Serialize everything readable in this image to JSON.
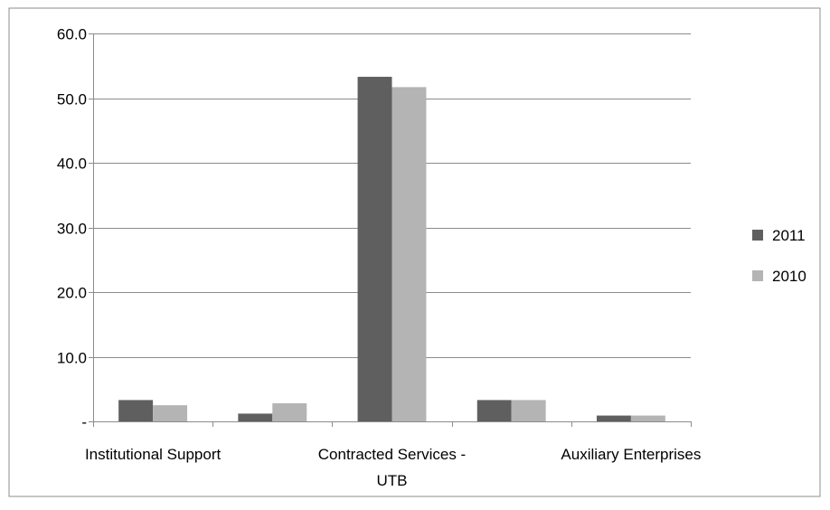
{
  "chart_data": {
    "type": "bar",
    "categories": [
      "Institutional Support",
      "",
      "Contracted Services - UTB",
      "",
      "Auxiliary Enterprises"
    ],
    "category_label_lines": [
      [
        "Institutional Support"
      ],
      [],
      [
        "Contracted Services -",
        "UTB"
      ],
      [],
      [
        "Auxiliary Enterprises"
      ]
    ],
    "series": [
      {
        "name": "2011",
        "color": "#5f5f5f",
        "values": [
          3.3,
          1.2,
          53.3,
          3.3,
          0.9
        ]
      },
      {
        "name": "2010",
        "color": "#b4b4b4",
        "values": [
          2.5,
          2.8,
          51.7,
          3.3,
          0.9
        ]
      }
    ],
    "yticks": [
      "-",
      "10.0",
      "20.0",
      "30.0",
      "40.0",
      "50.0",
      "60.0"
    ],
    "ytick_values": [
      0,
      10,
      20,
      30,
      40,
      50,
      60
    ],
    "ylim": [
      0,
      60
    ],
    "grid": true,
    "legend_position": "right",
    "title": "",
    "xlabel": "",
    "ylabel": ""
  }
}
